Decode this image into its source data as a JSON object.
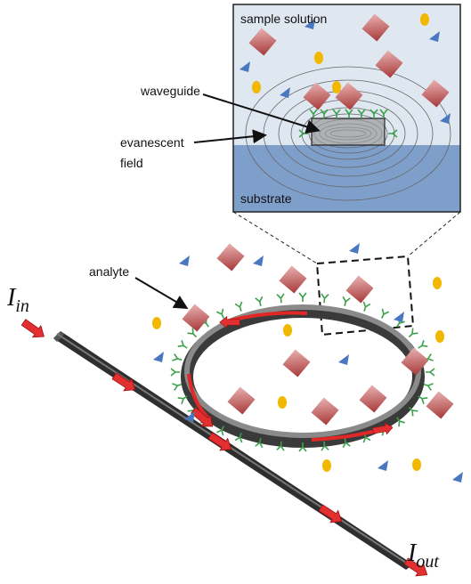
{
  "inset": {
    "top_label": "sample solution",
    "bottom_label": "substrate"
  },
  "callouts": {
    "waveguide": "waveguide",
    "evanescent": [
      "evanescent",
      "field"
    ],
    "analyte": "analyte"
  },
  "ports": {
    "input": {
      "symbol": "I",
      "subscript": "in"
    },
    "output": {
      "symbol": "I",
      "subscript": "out"
    }
  }
}
